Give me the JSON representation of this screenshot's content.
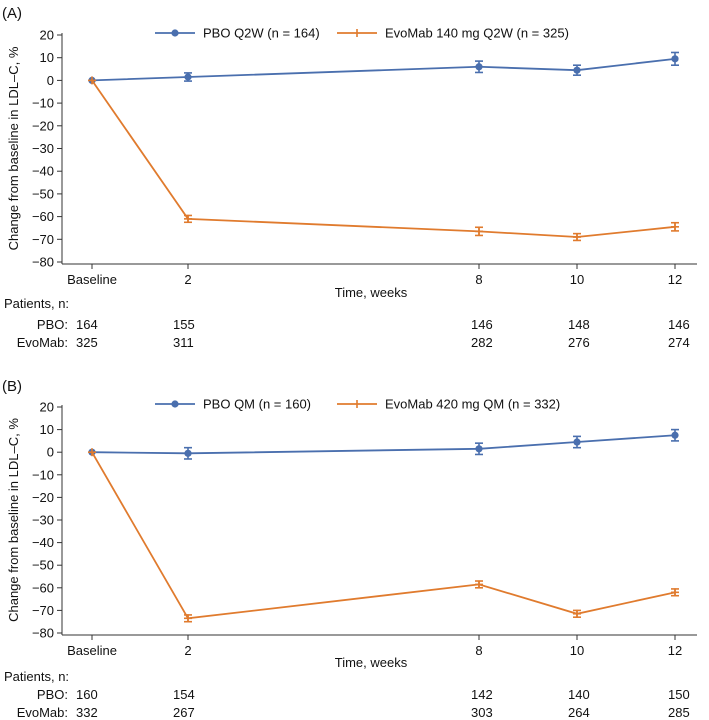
{
  "colors": {
    "pbo": "#4a6fae",
    "evomab": "#e07b2e",
    "axis": "#333333"
  },
  "chart_data": [
    {
      "panel_label": "(A)",
      "type": "line",
      "ylabel": "Change from baseline in LDL–C, %",
      "xlabel": "Time, weeks",
      "ylim": [
        -80,
        20
      ],
      "yticks": [
        "20",
        "10",
        "0",
        "−10",
        "−20",
        "−30",
        "−40",
        "−50",
        "−60",
        "−70",
        "−80"
      ],
      "ytick_values": [
        20,
        10,
        0,
        -10,
        -20,
        -30,
        -40,
        -50,
        -60,
        -70,
        -80
      ],
      "x_categories": [
        "Baseline",
        "2",
        "8",
        "10",
        "12"
      ],
      "x_values": [
        0,
        2,
        8,
        10,
        12
      ],
      "series": [
        {
          "key": "pbo",
          "name": "PBO Q2W (n = 164)",
          "marker": "circle",
          "values": [
            0,
            1.5,
            6,
            4.5,
            9.5
          ],
          "err": [
            0,
            1.8,
            2.5,
            2.2,
            2.8
          ]
        },
        {
          "key": "evomab",
          "name": "EvoMab 140 mg Q2W (n = 325)",
          "marker": "plus",
          "values": [
            0,
            -61,
            -66.5,
            -69,
            -64.5
          ],
          "err": [
            0,
            1.5,
            1.8,
            1.5,
            1.8
          ]
        }
      ],
      "patients_title": "Patients, n:",
      "patients": [
        {
          "label": "PBO:",
          "counts": [
            "164",
            "155",
            "146",
            "148",
            "146"
          ]
        },
        {
          "label": "EvoMab:",
          "counts": [
            "325",
            "311",
            "282",
            "276",
            "274"
          ]
        }
      ]
    },
    {
      "panel_label": "(B)",
      "type": "line",
      "ylabel": "Change from baseline in LDL–C, %",
      "xlabel": "Time, weeks",
      "ylim": [
        -80,
        20
      ],
      "yticks": [
        "20",
        "10",
        "0",
        "−10",
        "−20",
        "−30",
        "−40",
        "−50",
        "−60",
        "−70",
        "−80"
      ],
      "ytick_values": [
        20,
        10,
        0,
        -10,
        -20,
        -30,
        -40,
        -50,
        -60,
        -70,
        -80
      ],
      "x_categories": [
        "Baseline",
        "2",
        "8",
        "10",
        "12"
      ],
      "x_values": [
        0,
        2,
        8,
        10,
        12
      ],
      "series": [
        {
          "key": "pbo",
          "name": "PBO QM (n = 160)",
          "marker": "circle",
          "values": [
            0,
            -0.5,
            1.5,
            4.5,
            7.5
          ],
          "err": [
            0,
            2.5,
            2.5,
            2.5,
            2.5
          ]
        },
        {
          "key": "evomab",
          "name": "EvoMab 420 mg QM (n = 332)",
          "marker": "plus",
          "values": [
            0,
            -73.5,
            -58.5,
            -71.5,
            -62
          ],
          "err": [
            0,
            1.5,
            1.5,
            1.5,
            1.5
          ]
        }
      ],
      "patients_title": "Patients, n:",
      "patients": [
        {
          "label": "PBO:",
          "counts": [
            "160",
            "154",
            "142",
            "140",
            "150"
          ]
        },
        {
          "label": "EvoMab:",
          "counts": [
            "332",
            "267",
            "303",
            "264",
            "285"
          ]
        }
      ]
    }
  ]
}
